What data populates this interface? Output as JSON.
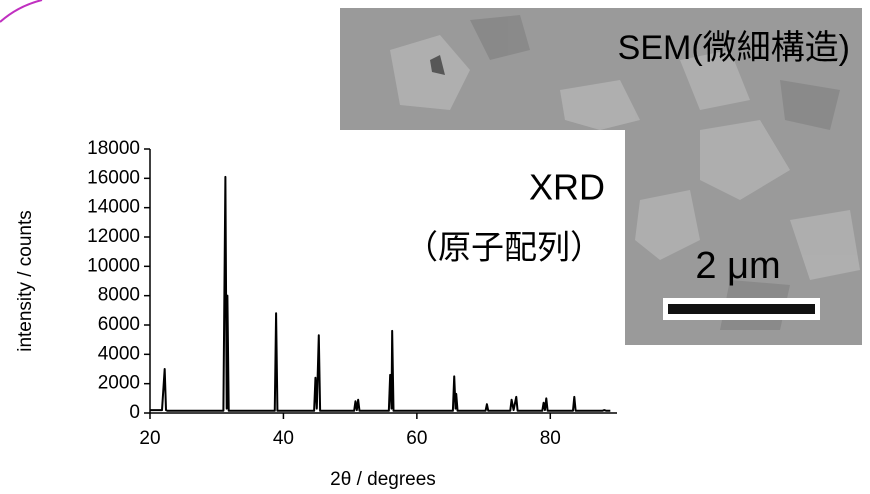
{
  "chart_data": {
    "type": "line",
    "x_label": "2θ / degrees",
    "y_label": "intensity / counts",
    "x": [
      20,
      21.8,
      22.2,
      22.4,
      22.6,
      31.0,
      31.3,
      31.5,
      31.6,
      31.8,
      38.7,
      38.9,
      39.1,
      44.6,
      44.8,
      45.0,
      45.3,
      45.5,
      50.6,
      50.8,
      51.0,
      51.2,
      51.4,
      55.8,
      56.0,
      56.2,
      56.3,
      56.5,
      65.4,
      65.6,
      65.8,
      65.9,
      66.1,
      70.3,
      70.5,
      70.7,
      74.0,
      74.2,
      74.5,
      74.9,
      75.1,
      78.8,
      79.0,
      79.2,
      79.4,
      79.6,
      83.4,
      83.6,
      83.8,
      87.8,
      88.1,
      88.4,
      89
    ],
    "values": [
      200,
      200,
      3000,
      200,
      150,
      150,
      16100,
      300,
      8000,
      150,
      150,
      6800,
      150,
      150,
      2400,
      300,
      5300,
      150,
      150,
      800,
      200,
      900,
      150,
      150,
      2600,
      300,
      5600,
      150,
      150,
      2500,
      300,
      1300,
      150,
      150,
      600,
      150,
      150,
      900,
      200,
      1100,
      150,
      150,
      700,
      200,
      1000,
      150,
      150,
      1100,
      150,
      150,
      200,
      150,
      150
    ],
    "color": "#000000",
    "xlim": [
      20,
      90
    ],
    "xticks": [
      20,
      40,
      60,
      80
    ],
    "ylim": [
      0,
      18000
    ],
    "yticks": [
      0,
      2000,
      4000,
      6000,
      8000,
      10000,
      12000,
      14000,
      16000,
      18000
    ],
    "annotations": [
      "XRD",
      "（原子配列）",
      "SEM(微細構造)",
      "2 μm"
    ]
  }
}
